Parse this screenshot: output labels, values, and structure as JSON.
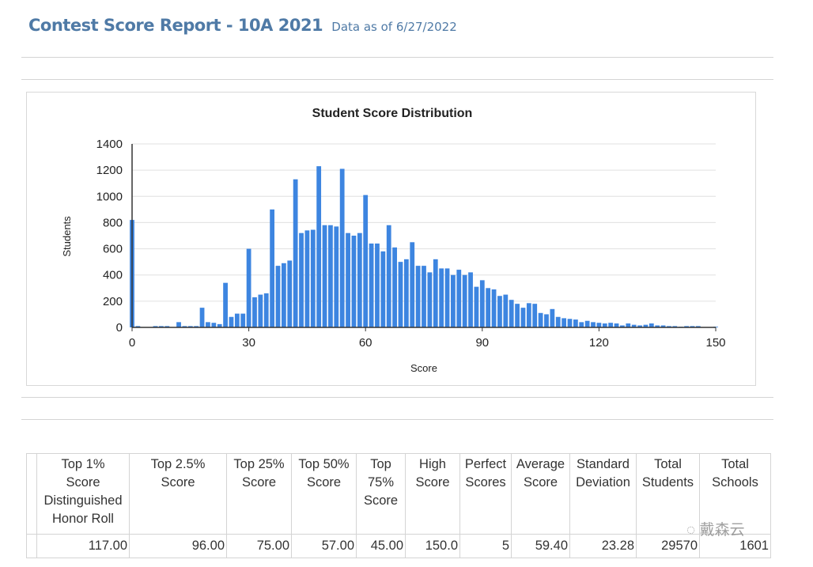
{
  "header": {
    "title": "Contest Score Report -  10A 2021",
    "as_of": "Data as of 6/27/2022"
  },
  "chart_data": {
    "type": "bar",
    "title": "Student Score Distribution",
    "xlabel": "Score",
    "ylabel": "Students",
    "xlim": [
      0,
      150
    ],
    "ylim": [
      0,
      1400
    ],
    "xticks": [
      0,
      30,
      60,
      90,
      120,
      150
    ],
    "yticks": [
      0,
      200,
      400,
      600,
      800,
      1000,
      1200,
      1400
    ],
    "grid": true,
    "color": "#3d85e0",
    "bin_width": 1.5,
    "values": [
      820,
      10,
      0,
      0,
      10,
      10,
      10,
      0,
      40,
      10,
      10,
      10,
      150,
      40,
      35,
      25,
      340,
      80,
      105,
      105,
      600,
      230,
      250,
      260,
      900,
      470,
      490,
      510,
      1130,
      720,
      740,
      745,
      1230,
      780,
      780,
      770,
      1210,
      720,
      700,
      720,
      1010,
      640,
      640,
      580,
      780,
      610,
      500,
      520,
      650,
      470,
      470,
      420,
      520,
      450,
      450,
      400,
      440,
      400,
      420,
      310,
      360,
      300,
      290,
      240,
      250,
      210,
      180,
      150,
      185,
      180,
      110,
      100,
      140,
      80,
      70,
      65,
      60,
      40,
      50,
      40,
      35,
      30,
      35,
      30,
      15,
      30,
      20,
      15,
      20,
      30,
      15,
      15,
      10,
      10,
      5,
      10,
      10,
      10,
      0,
      0,
      5
    ]
  },
  "table": {
    "headers": [
      [
        "Top 1%",
        "Score",
        "Distinguished",
        "Honor Roll"
      ],
      [
        "Top 2.5%",
        "Score"
      ],
      [
        "Top 25%",
        "Score"
      ],
      [
        "Top 50%",
        "Score"
      ],
      [
        "Top",
        "75%",
        "Score"
      ],
      [
        "High",
        "Score"
      ],
      [
        "Perfect",
        "Scores"
      ],
      [
        "Average",
        "Score"
      ],
      [
        "Standard",
        "Deviation"
      ],
      [
        "Total",
        "Students"
      ],
      [
        "Total",
        "Schools"
      ]
    ],
    "values": [
      "117.00",
      "96.00",
      "75.00",
      "57.00",
      "45.00",
      "150.0",
      "5",
      "59.40",
      "23.28",
      "29570",
      "1601"
    ]
  },
  "watermark": "戴森云"
}
